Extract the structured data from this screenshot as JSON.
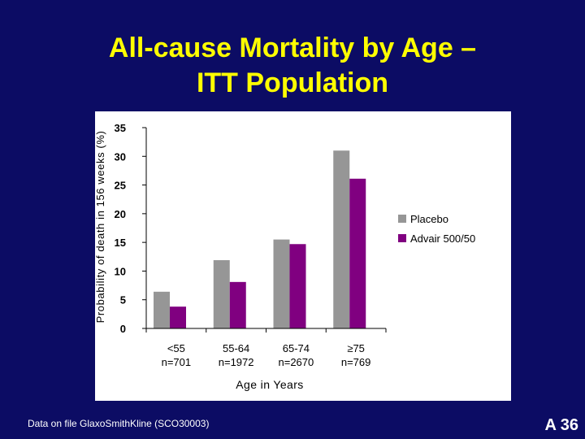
{
  "slide": {
    "title_line1": "All-cause Mortality by Age –",
    "title_line2": "ITT Population",
    "footnote": "Data on file GlaxoSmithKline (SCO30003)",
    "slide_number": "A 36"
  },
  "colors": {
    "background": "#0c0c64",
    "title": "#ffff00",
    "placebo": "#969696",
    "advair": "#800080"
  },
  "chart_data": {
    "type": "bar",
    "title": "",
    "xlabel": "Age in Years",
    "ylabel": "Probability of death in 156 weeks (%)",
    "ylim": [
      0,
      35
    ],
    "yticks": [
      0,
      5,
      10,
      15,
      20,
      25,
      30,
      35
    ],
    "grid": false,
    "legend_position": "right",
    "categories": [
      {
        "line1": "<55",
        "line2": "n=701"
      },
      {
        "line1": "55-64",
        "line2": "n=1972"
      },
      {
        "line1": "65-74",
        "line2": "n=2670"
      },
      {
        "line1": "≥75",
        "line2": "n=769"
      }
    ],
    "series": [
      {
        "name": "Placebo",
        "color": "#969696",
        "values": [
          6.4,
          11.9,
          15.5,
          31.0
        ]
      },
      {
        "name": "Advair 500/50",
        "color": "#800080",
        "values": [
          3.8,
          8.1,
          14.7,
          26.1
        ]
      }
    ]
  }
}
